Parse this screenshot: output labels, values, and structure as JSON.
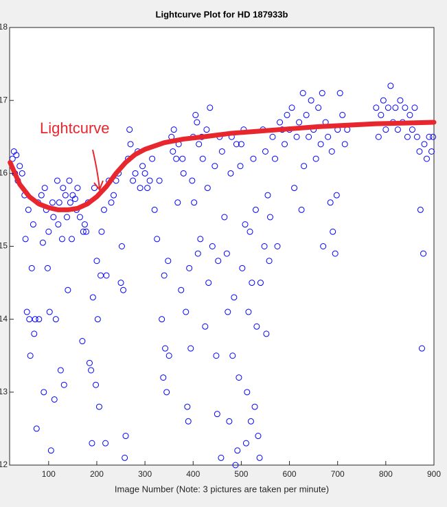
{
  "chart_data": {
    "type": "scatter",
    "title": "Lightcurve Plot for HD 187933b",
    "x_label": "Image Number (Note: 3 pictures are taken per minute)",
    "xlim": [
      19,
      900
    ],
    "ylim": [
      12,
      18
    ],
    "xticks": [
      100,
      200,
      300,
      400,
      500,
      600,
      700,
      800,
      900
    ],
    "yticks": [
      12,
      13,
      14,
      15,
      16,
      17,
      18
    ],
    "series": [
      {
        "color": "#0000ff",
        "marker": "circle",
        "x": [
          25,
          28,
          30,
          33,
          36,
          40,
          45,
          50,
          52,
          55,
          58,
          60,
          62,
          65,
          68,
          70,
          72,
          75,
          78,
          80,
          85,
          88,
          90,
          92,
          95,
          98,
          100,
          102,
          105,
          108,
          110,
          112,
          115,
          118,
          120,
          122,
          125,
          128,
          130,
          132,
          135,
          138,
          140,
          143,
          145,
          148,
          150,
          155,
          158,
          160,
          165,
          170,
          172,
          175,
          178,
          182,
          185,
          188,
          190,
          192,
          195,
          198,
          200,
          202,
          205,
          208,
          210,
          215,
          218,
          220,
          225,
          230,
          235,
          240,
          245,
          250,
          252,
          255,
          258,
          260,
          265,
          268,
          270,
          275,
          280,
          285,
          290,
          295,
          300,
          305,
          310,
          315,
          320,
          325,
          330,
          335,
          338,
          340,
          342,
          345,
          348,
          350,
          355,
          358,
          360,
          365,
          368,
          370,
          375,
          378,
          380,
          385,
          388,
          390,
          392,
          395,
          398,
          400,
          402,
          405,
          408,
          410,
          412,
          415,
          418,
          420,
          425,
          428,
          430,
          432,
          435,
          440,
          445,
          448,
          450,
          452,
          455,
          458,
          460,
          465,
          470,
          472,
          475,
          478,
          480,
          482,
          485,
          488,
          490,
          492,
          495,
          498,
          500,
          502,
          505,
          508,
          510,
          512,
          515,
          518,
          520,
          522,
          525,
          528,
          530,
          532,
          535,
          538,
          540,
          545,
          548,
          550,
          552,
          555,
          558,
          560,
          565,
          570,
          575,
          580,
          585,
          590,
          595,
          600,
          605,
          610,
          615,
          620,
          625,
          628,
          630,
          635,
          640,
          645,
          650,
          655,
          660,
          665,
          668,
          670,
          675,
          680,
          685,
          688,
          690,
          695,
          698,
          700,
          705,
          710,
          715,
          720,
          780,
          785,
          790,
          795,
          800,
          805,
          810,
          815,
          820,
          825,
          830,
          835,
          840,
          845,
          850,
          855,
          860,
          865,
          870,
          872,
          875,
          878,
          880,
          885,
          890,
          895,
          898
        ],
        "y": [
          16.2,
          16.3,
          16.0,
          16.25,
          15.9,
          16.1,
          16.0,
          15.7,
          15.1,
          14.1,
          15.5,
          14.0,
          13.5,
          14.7,
          15.3,
          13.8,
          14.0,
          12.5,
          15.6,
          14.0,
          15.7,
          15.05,
          13.0,
          15.8,
          15.5,
          14.7,
          15.2,
          14.1,
          12.2,
          15.6,
          15.4,
          12.9,
          14.0,
          15.9,
          15.3,
          15.6,
          13.3,
          15.1,
          15.8,
          13.1,
          15.7,
          15.4,
          14.4,
          15.9,
          15.6,
          15.1,
          15.7,
          15.65,
          15.5,
          15.8,
          15.4,
          13.7,
          15.2,
          15.3,
          15.2,
          15.6,
          13.4,
          13.3,
          12.3,
          14.3,
          15.8,
          13.1,
          14.8,
          14.0,
          12.8,
          14.6,
          15.2,
          15.5,
          12.3,
          14.6,
          15.9,
          15.6,
          15.7,
          15.9,
          16.0,
          14.5,
          15.0,
          14.4,
          12.1,
          12.4,
          16.2,
          16.6,
          16.4,
          15.9,
          16.0,
          16.3,
          15.8,
          16.1,
          16.0,
          15.8,
          15.9,
          16.2,
          15.5,
          15.1,
          15.9,
          14.0,
          13.2,
          14.6,
          13.6,
          13.0,
          14.8,
          13.5,
          16.5,
          16.3,
          16.6,
          16.2,
          15.6,
          16.4,
          14.4,
          16.2,
          16.0,
          14.1,
          12.8,
          12.6,
          14.7,
          13.6,
          15.9,
          16.5,
          15.6,
          16.8,
          16.7,
          14.9,
          16.4,
          15.1,
          16.5,
          16.2,
          13.9,
          16.6,
          15.8,
          14.5,
          16.9,
          15.0,
          16.1,
          13.5,
          12.7,
          14.8,
          16.5,
          12.1,
          16.3,
          15.4,
          14.9,
          14.1,
          12.6,
          16.0,
          16.5,
          13.5,
          14.3,
          12.0,
          16.4,
          12.2,
          13.2,
          16.1,
          16.4,
          14.7,
          16.6,
          15.3,
          12.3,
          13.0,
          14.1,
          15.2,
          12.6,
          14.5,
          16.2,
          12.8,
          15.5,
          13.9,
          12.4,
          12.1,
          14.5,
          16.6,
          15.0,
          16.3,
          13.8,
          15.7,
          14.8,
          15.4,
          16.5,
          16.2,
          15.0,
          16.7,
          16.6,
          16.4,
          16.8,
          16.6,
          16.9,
          15.8,
          16.5,
          16.7,
          15.5,
          17.1,
          16.1,
          16.8,
          16.5,
          17.0,
          16.6,
          16.2,
          16.9,
          16.4,
          17.1,
          15.0,
          16.7,
          16.5,
          15.6,
          16.3,
          15.2,
          14.9,
          15.7,
          16.6,
          17.1,
          16.8,
          16.4,
          16.6,
          16.9,
          16.5,
          16.8,
          17.0,
          16.6,
          16.9,
          17.2,
          16.7,
          16.9,
          16.6,
          17.0,
          16.7,
          16.9,
          16.5,
          16.8,
          16.6,
          16.9,
          16.5,
          16.3,
          15.5,
          13.6,
          14.9,
          16.4,
          16.2,
          16.5,
          16.3,
          16.5
        ]
      },
      {
        "name": "Lightcurve",
        "color": "#e8262e",
        "line": true,
        "x": [
          20,
          40,
          60,
          80,
          100,
          120,
          140,
          160,
          180,
          200,
          220,
          240,
          260,
          280,
          300,
          340,
          380,
          420,
          480,
          540,
          600,
          660,
          720,
          780,
          840,
          900
        ],
        "y": [
          16.15,
          15.85,
          15.68,
          15.58,
          15.53,
          15.5,
          15.5,
          15.52,
          15.58,
          15.68,
          15.82,
          16.0,
          16.15,
          16.26,
          16.33,
          16.42,
          16.47,
          16.5,
          16.55,
          16.58,
          16.61,
          16.64,
          16.66,
          16.68,
          16.69,
          16.7
        ]
      }
    ]
  }
}
